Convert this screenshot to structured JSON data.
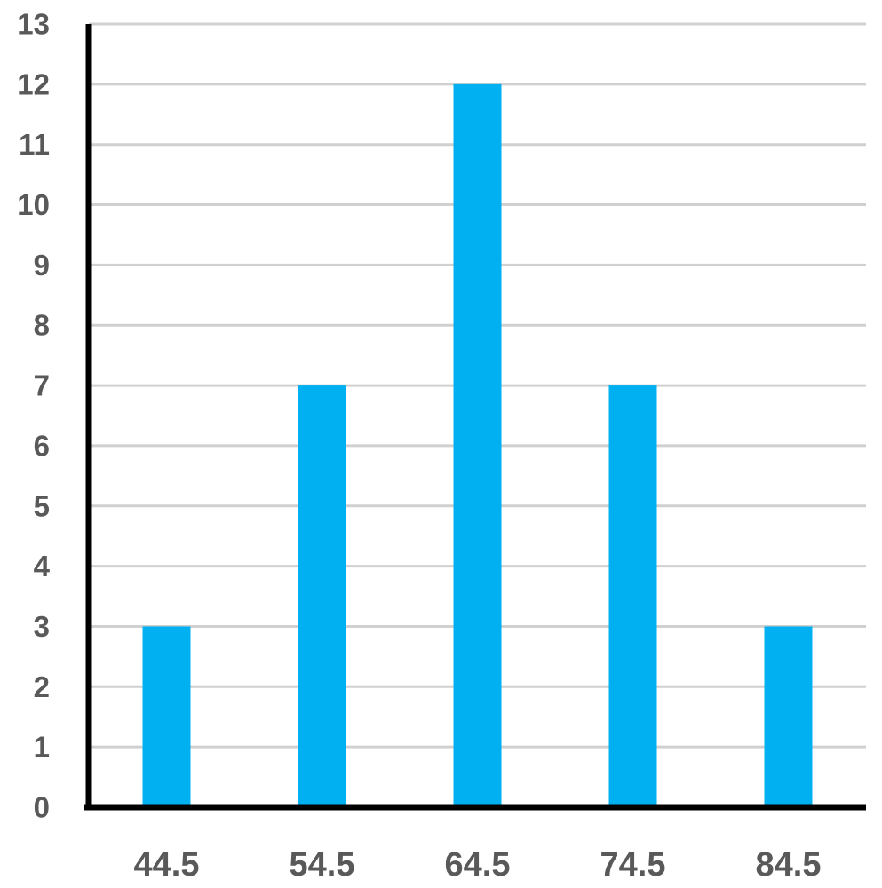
{
  "chart_data": {
    "type": "bar",
    "categories": [
      "44.5",
      "54.5",
      "64.5",
      "74.5",
      "84.5"
    ],
    "values": [
      3,
      7,
      12,
      7,
      3
    ],
    "title": "",
    "xlabel": "",
    "ylabel": "",
    "ylim": [
      0,
      13
    ],
    "yticks": [
      0,
      1,
      2,
      3,
      4,
      5,
      6,
      7,
      8,
      9,
      10,
      11,
      12,
      13
    ],
    "grid": true,
    "colors": {
      "bar": "#00B0F0",
      "grid": "#D0D0D0",
      "axis": "#000000",
      "tick_text": "#595959"
    }
  }
}
